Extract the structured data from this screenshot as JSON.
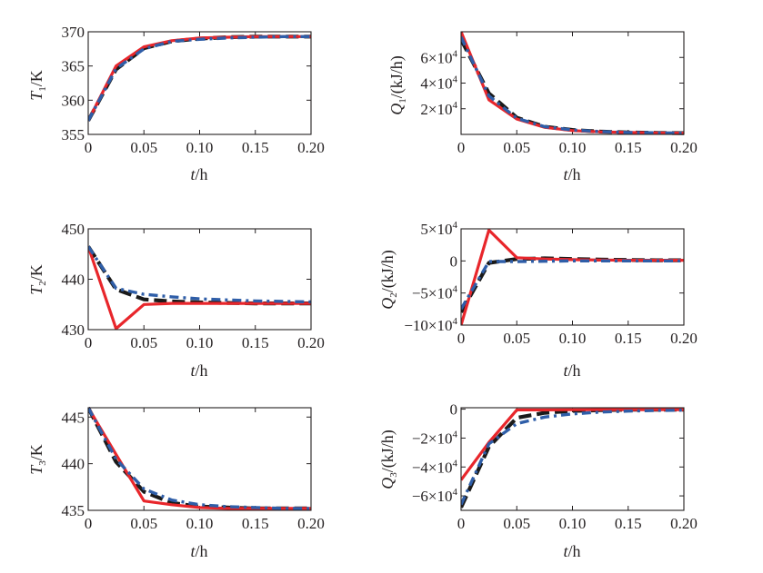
{
  "figure": {
    "legend": "none",
    "colors": {
      "red": "#e8262b",
      "black": "#1a1a1a",
      "blue": "#2f5ea8"
    }
  },
  "chart_data": [
    {
      "id": "T1",
      "type": "line",
      "title": "",
      "xlabel": "t/h",
      "ylabel": "T1/K",
      "xlim": [
        0,
        0.2
      ],
      "ylim": [
        355,
        370
      ],
      "xticks": [
        "0",
        "0.05",
        "0.10",
        "0.15",
        "0.20"
      ],
      "yticks": [
        "355",
        "360",
        "365",
        "370"
      ],
      "ytick_values": [
        355,
        360,
        365,
        370
      ],
      "series": [
        {
          "name": "black-dashed",
          "color": "#1a1a1a",
          "style": "dashed",
          "x": [
            0,
            0.025,
            0.05,
            0.075,
            0.1,
            0.125,
            0.15,
            0.175,
            0.2
          ],
          "y": [
            357.0,
            364.5,
            367.6,
            368.6,
            369.0,
            369.2,
            369.3,
            369.3,
            369.3
          ]
        },
        {
          "name": "red-solid",
          "color": "#e8262b",
          "style": "solid",
          "x": [
            0,
            0.025,
            0.05,
            0.075,
            0.1,
            0.125,
            0.15,
            0.175,
            0.2
          ],
          "y": [
            357.0,
            365.0,
            367.8,
            368.7,
            369.1,
            369.2,
            369.3,
            369.3,
            369.3
          ]
        },
        {
          "name": "blue-dashdot",
          "color": "#2f5ea8",
          "style": "dashdot",
          "x": [
            0,
            0.025,
            0.05,
            0.075,
            0.1,
            0.125,
            0.15,
            0.175,
            0.2
          ],
          "y": [
            357.0,
            364.6,
            367.5,
            368.6,
            368.9,
            369.1,
            369.2,
            369.3,
            369.3
          ]
        }
      ]
    },
    {
      "id": "Q1",
      "type": "line",
      "title": "",
      "xlabel": "t/h",
      "ylabel": "Q1/(kJ/h)",
      "xlim": [
        0,
        0.2
      ],
      "ylim": [
        0,
        80000
      ],
      "xticks": [
        "0",
        "0.05",
        "0.10",
        "0.15",
        "0.20"
      ],
      "yticks": [
        "2×10⁴",
        "4×10⁴",
        "6×10⁴"
      ],
      "ytick_values": [
        20000,
        40000,
        60000
      ],
      "series": [
        {
          "name": "black-dashed",
          "color": "#1a1a1a",
          "style": "dashed",
          "x": [
            0,
            0.025,
            0.05,
            0.075,
            0.1,
            0.125,
            0.15,
            0.175,
            0.2
          ],
          "y": [
            74000,
            32000,
            13000,
            6000,
            3500,
            2200,
            1500,
            1200,
            1000
          ]
        },
        {
          "name": "red-solid",
          "color": "#e8262b",
          "style": "solid",
          "x": [
            0,
            0.025,
            0.05,
            0.075,
            0.1,
            0.125,
            0.15,
            0.175,
            0.2
          ],
          "y": [
            80000,
            27000,
            12000,
            5500,
            3000,
            2000,
            1500,
            1200,
            1000
          ]
        },
        {
          "name": "blue-dashdot",
          "color": "#2f5ea8",
          "style": "dashdot",
          "x": [
            0,
            0.025,
            0.05,
            0.075,
            0.1,
            0.125,
            0.15,
            0.175,
            0.2
          ],
          "y": [
            76000,
            30000,
            12500,
            6000,
            3500,
            2200,
            1500,
            1200,
            1000
          ]
        }
      ]
    },
    {
      "id": "T2",
      "type": "line",
      "title": "",
      "xlabel": "t/h",
      "ylabel": "T2/K",
      "xlim": [
        0,
        0.2
      ],
      "ylim": [
        430,
        450
      ],
      "xticks": [
        "0",
        "0.05",
        "0.10",
        "0.15",
        "0.20"
      ],
      "yticks": [
        "430",
        "440",
        "450"
      ],
      "ytick_values": [
        430,
        440,
        450
      ],
      "series": [
        {
          "name": "black-dashed",
          "color": "#1a1a1a",
          "style": "dashed",
          "x": [
            0,
            0.025,
            0.05,
            0.075,
            0.1,
            0.125,
            0.15,
            0.175,
            0.2
          ],
          "y": [
            446.5,
            438.0,
            436.0,
            435.6,
            435.4,
            435.3,
            435.2,
            435.2,
            435.2
          ]
        },
        {
          "name": "red-solid",
          "color": "#e8262b",
          "style": "solid",
          "x": [
            0,
            0.025,
            0.05,
            0.075,
            0.1,
            0.125,
            0.15,
            0.175,
            0.2
          ],
          "y": [
            446.5,
            430.2,
            435.0,
            435.2,
            435.2,
            435.2,
            435.2,
            435.2,
            435.2
          ]
        },
        {
          "name": "blue-dashdot",
          "color": "#2f5ea8",
          "style": "dashdot",
          "x": [
            0,
            0.025,
            0.05,
            0.075,
            0.1,
            0.125,
            0.15,
            0.175,
            0.2
          ],
          "y": [
            446.5,
            438.2,
            437.0,
            436.5,
            436.1,
            435.9,
            435.7,
            435.6,
            435.5
          ]
        }
      ]
    },
    {
      "id": "Q2",
      "type": "line",
      "title": "",
      "xlabel": "t/h",
      "ylabel": "Q2/(kJ/h)",
      "xlim": [
        0,
        0.2
      ],
      "ylim": [
        -100000,
        50000
      ],
      "xticks": [
        "0",
        "0.05",
        "0.10",
        "0.15",
        "0.20"
      ],
      "yticks": [
        "5×10⁴",
        "0",
        "−5×10⁴",
        "−10×10⁴"
      ],
      "ytick_values": [
        50000,
        0,
        -50000,
        -100000
      ],
      "series": [
        {
          "name": "black-dashed",
          "color": "#1a1a1a",
          "style": "dashed",
          "x": [
            0,
            0.025,
            0.05,
            0.075,
            0.1,
            0.125,
            0.15,
            0.175,
            0.2
          ],
          "y": [
            -80000,
            -3000,
            3000,
            4000,
            3000,
            2000,
            1500,
            1000,
            1000
          ]
        },
        {
          "name": "red-solid",
          "color": "#e8262b",
          "style": "solid",
          "x": [
            0,
            0.025,
            0.05,
            0.075,
            0.1,
            0.125,
            0.15,
            0.175,
            0.2
          ],
          "y": [
            -100000,
            48000,
            5000,
            3000,
            2000,
            1500,
            1000,
            1000,
            1000
          ]
        },
        {
          "name": "blue-dashdot",
          "color": "#2f5ea8",
          "style": "dashdot",
          "x": [
            0,
            0.025,
            0.05,
            0.075,
            0.1,
            0.125,
            0.15,
            0.175,
            0.2
          ],
          "y": [
            -75000,
            -1000,
            -1000,
            -500,
            0,
            0,
            0,
            0,
            0
          ]
        }
      ]
    },
    {
      "id": "T3",
      "type": "line",
      "title": "",
      "xlabel": "t/h",
      "ylabel": "T3/K",
      "xlim": [
        0,
        0.2
      ],
      "ylim": [
        435,
        446
      ],
      "xticks": [
        "0",
        "0.05",
        "0.10",
        "0.15",
        "0.20"
      ],
      "yticks": [
        "435",
        "440",
        "445"
      ],
      "ytick_values": [
        435,
        440,
        445
      ],
      "series": [
        {
          "name": "black-dashed",
          "color": "#1a1a1a",
          "style": "dashed",
          "x": [
            0,
            0.025,
            0.05,
            0.075,
            0.1,
            0.125,
            0.15,
            0.175,
            0.2
          ],
          "y": [
            446.0,
            440.2,
            437.0,
            435.8,
            435.4,
            435.3,
            435.2,
            435.2,
            435.2
          ]
        },
        {
          "name": "red-solid",
          "color": "#e8262b",
          "style": "solid",
          "x": [
            0,
            0.025,
            0.05,
            0.075,
            0.1,
            0.125,
            0.15,
            0.175,
            0.2
          ],
          "y": [
            446.0,
            441.0,
            436.0,
            435.6,
            435.3,
            435.2,
            435.2,
            435.2,
            435.2
          ]
        },
        {
          "name": "blue-dashdot",
          "color": "#2f5ea8",
          "style": "dashdot",
          "x": [
            0,
            0.025,
            0.05,
            0.075,
            0.1,
            0.125,
            0.15,
            0.175,
            0.2
          ],
          "y": [
            446.0,
            440.5,
            437.3,
            436.1,
            435.6,
            435.4,
            435.3,
            435.2,
            435.2
          ]
        }
      ]
    },
    {
      "id": "Q3",
      "type": "line",
      "title": "",
      "xlabel": "t/h",
      "ylabel": "Q3/(kJ/h)",
      "xlim": [
        0,
        0.2
      ],
      "ylim": [
        -70000,
        1000
      ],
      "xticks": [
        "0",
        "0.05",
        "0.10",
        "0.15",
        "0.20"
      ],
      "yticks": [
        "0",
        "−2×10⁴",
        "−4×10⁴",
        "−6×10⁴"
      ],
      "ytick_values": [
        0,
        -20000,
        -40000,
        -60000
      ],
      "series": [
        {
          "name": "black-dashed",
          "color": "#1a1a1a",
          "style": "dashed",
          "x": [
            0,
            0.025,
            0.05,
            0.075,
            0.1,
            0.125,
            0.15,
            0.175,
            0.2
          ],
          "y": [
            -68000,
            -26000,
            -6000,
            -2500,
            -1200,
            -700,
            -400,
            -300,
            -300
          ]
        },
        {
          "name": "red-solid",
          "color": "#e8262b",
          "style": "solid",
          "x": [
            0,
            0.025,
            0.05,
            0.075,
            0.1,
            0.125,
            0.15,
            0.175,
            0.2
          ],
          "y": [
            -49000,
            -23000,
            -500,
            -500,
            -400,
            -300,
            -300,
            -300,
            -300
          ]
        },
        {
          "name": "blue-dashdot",
          "color": "#2f5ea8",
          "style": "dashdot",
          "x": [
            0,
            0.025,
            0.05,
            0.075,
            0.1,
            0.125,
            0.15,
            0.175,
            0.2
          ],
          "y": [
            -66000,
            -24000,
            -10000,
            -5500,
            -3300,
            -2000,
            -1300,
            -900,
            -700
          ]
        }
      ]
    }
  ]
}
